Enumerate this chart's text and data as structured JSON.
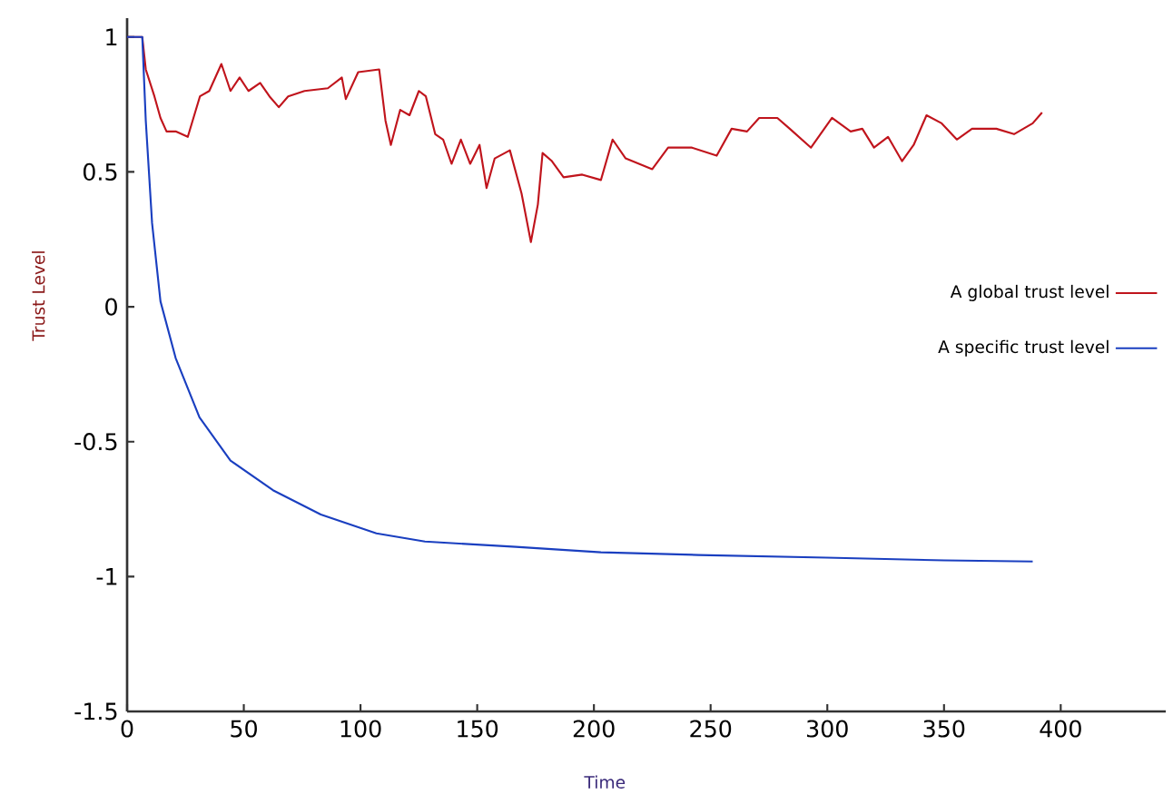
{
  "chart_data": {
    "type": "line",
    "xlabel": "Time",
    "ylabel": "Trust Level",
    "xlim": [
      0,
      445
    ],
    "ylim": [
      -1.5,
      1.07
    ],
    "xticks": [
      0,
      50,
      100,
      150,
      200,
      250,
      300,
      350,
      400
    ],
    "yticks": [
      -1.5,
      -1,
      -0.5,
      0,
      0.5,
      1
    ],
    "legend": "right",
    "series": [
      {
        "name": "A global trust level",
        "color": "#c0141c",
        "x": [
          0,
          6.5,
          8,
          11.7,
          14.3,
          16.9,
          20.8,
          26,
          31.2,
          35.2,
          40.4,
          44.3,
          48.2,
          52,
          57,
          61,
          65,
          69,
          76,
          86,
          92,
          93.7,
          99,
          108,
          110.7,
          113,
          117,
          121,
          125,
          128,
          132,
          135.4,
          139,
          143,
          147,
          151,
          154,
          157.5,
          164,
          169,
          173,
          176,
          178,
          182,
          187,
          195,
          203,
          208,
          213.6,
          225,
          231.8,
          242,
          252.6,
          259,
          265.6,
          270.8,
          278.6,
          283.9,
          293,
          302,
          310,
          315,
          320,
          326,
          332,
          337,
          342.5,
          349,
          355.5,
          362,
          372.4,
          380,
          388,
          392
        ],
        "values": [
          1,
          1,
          0.88,
          0.78,
          0.7,
          0.65,
          0.65,
          0.63,
          0.78,
          0.8,
          0.9,
          0.8,
          0.85,
          0.8,
          0.83,
          0.78,
          0.74,
          0.78,
          0.8,
          0.81,
          0.85,
          0.77,
          0.87,
          0.88,
          0.69,
          0.6,
          0.73,
          0.71,
          0.8,
          0.78,
          0.64,
          0.62,
          0.53,
          0.62,
          0.53,
          0.6,
          0.44,
          0.55,
          0.58,
          0.42,
          0.24,
          0.38,
          0.57,
          0.54,
          0.48,
          0.49,
          0.47,
          0.62,
          0.55,
          0.51,
          0.59,
          0.59,
          0.56,
          0.66,
          0.65,
          0.7,
          0.7,
          0.66,
          0.59,
          0.7,
          0.65,
          0.66,
          0.59,
          0.63,
          0.54,
          0.6,
          0.71,
          0.68,
          0.62,
          0.66,
          0.66,
          0.64,
          0.68,
          0.72
        ]
      },
      {
        "name": "A specific trust level",
        "color": "#1a3fc0",
        "x": [
          0,
          6.5,
          8,
          10.7,
          14.3,
          20.8,
          31,
          44.3,
          62.5,
          83,
          106.8,
          127.6,
          166.6,
          203,
          244.8,
          299.5,
          350,
          388
        ],
        "values": [
          1,
          1,
          0.69,
          0.31,
          0.02,
          -0.19,
          -0.41,
          -0.57,
          -0.68,
          -0.77,
          -0.84,
          -0.87,
          -0.89,
          -0.91,
          -0.92,
          -0.93,
          -0.94,
          -0.944
        ]
      }
    ]
  }
}
